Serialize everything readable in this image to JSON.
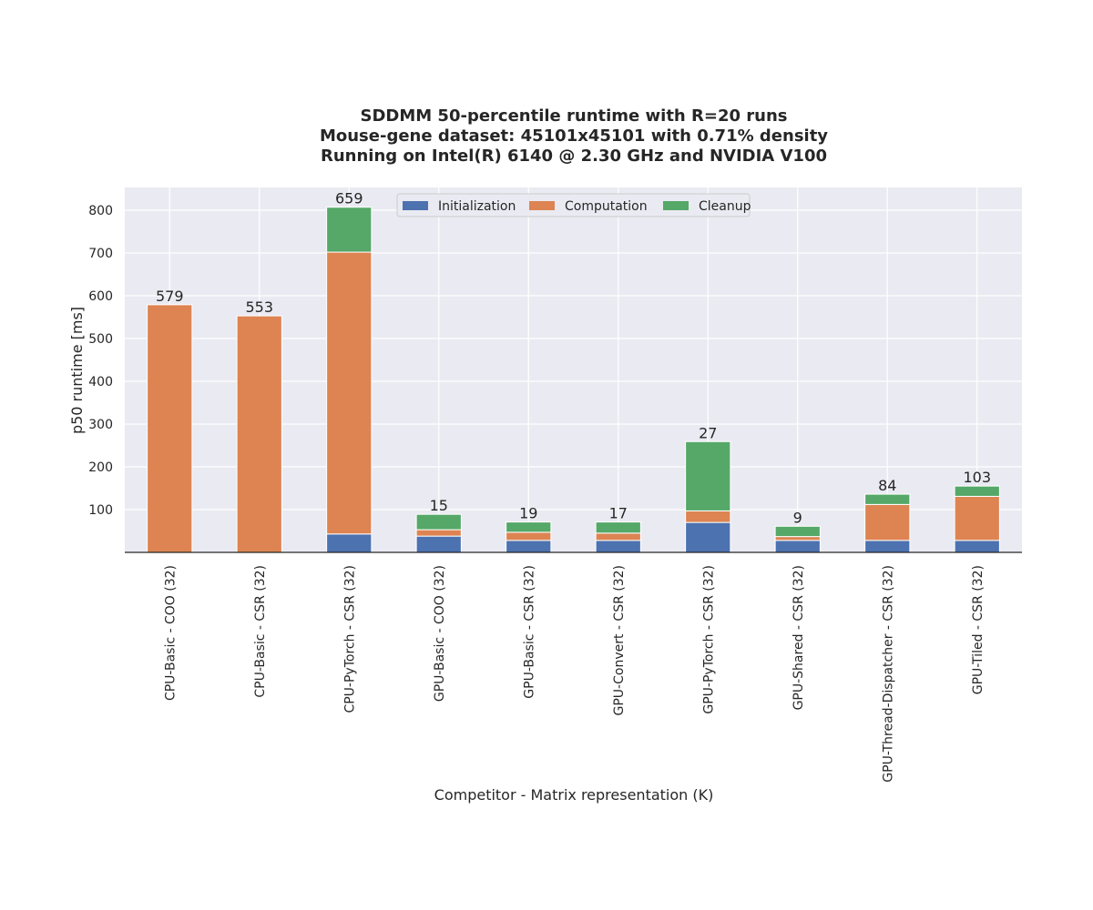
{
  "chart_data": {
    "type": "bar",
    "stacked": true,
    "title_lines": [
      "SDDMM 50-percentile runtime with R=20 runs",
      "Mouse-gene dataset: 45101x45101 with 0.71% density",
      "Running on Intel(R) 6140 @ 2.30 GHz and NVIDIA V100"
    ],
    "xlabel": "Competitor - Matrix representation (K)",
    "ylabel": "p50 runtime [ms]",
    "ylim": [
      0,
      850
    ],
    "yticks": [
      100,
      200,
      300,
      400,
      500,
      600,
      700,
      800
    ],
    "grid": true,
    "legend_position": "top-center",
    "categories": [
      "CPU-Basic - COO (32)",
      "CPU-Basic - CSR (32)",
      "CPU-PyTorch - CSR (32)",
      "GPU-Basic - COO (32)",
      "GPU-Basic - CSR (32)",
      "GPU-Convert - CSR (32)",
      "GPU-PyTorch - CSR (32)",
      "GPU-Shared - CSR (32)",
      "GPU-Thread-Dispatcher - CSR (32)",
      "GPU-Tiled - CSR (32)"
    ],
    "series": [
      {
        "name": "Initialization",
        "color": "#4c72b0",
        "values": [
          0,
          0,
          43,
          38,
          28,
          28,
          70,
          28,
          28,
          28
        ]
      },
      {
        "name": "Computation",
        "color": "#dd8452",
        "values": [
          579,
          553,
          659,
          15,
          19,
          17,
          27,
          9,
          84,
          103
        ]
      },
      {
        "name": "Cleanup",
        "color": "#55a868",
        "values": [
          0,
          0,
          105,
          36,
          24,
          26,
          162,
          24,
          24,
          24
        ]
      }
    ],
    "bar_labels": [
      "579",
      "553",
      "659",
      "15",
      "19",
      "17",
      "27",
      "9",
      "84",
      "103"
    ]
  }
}
